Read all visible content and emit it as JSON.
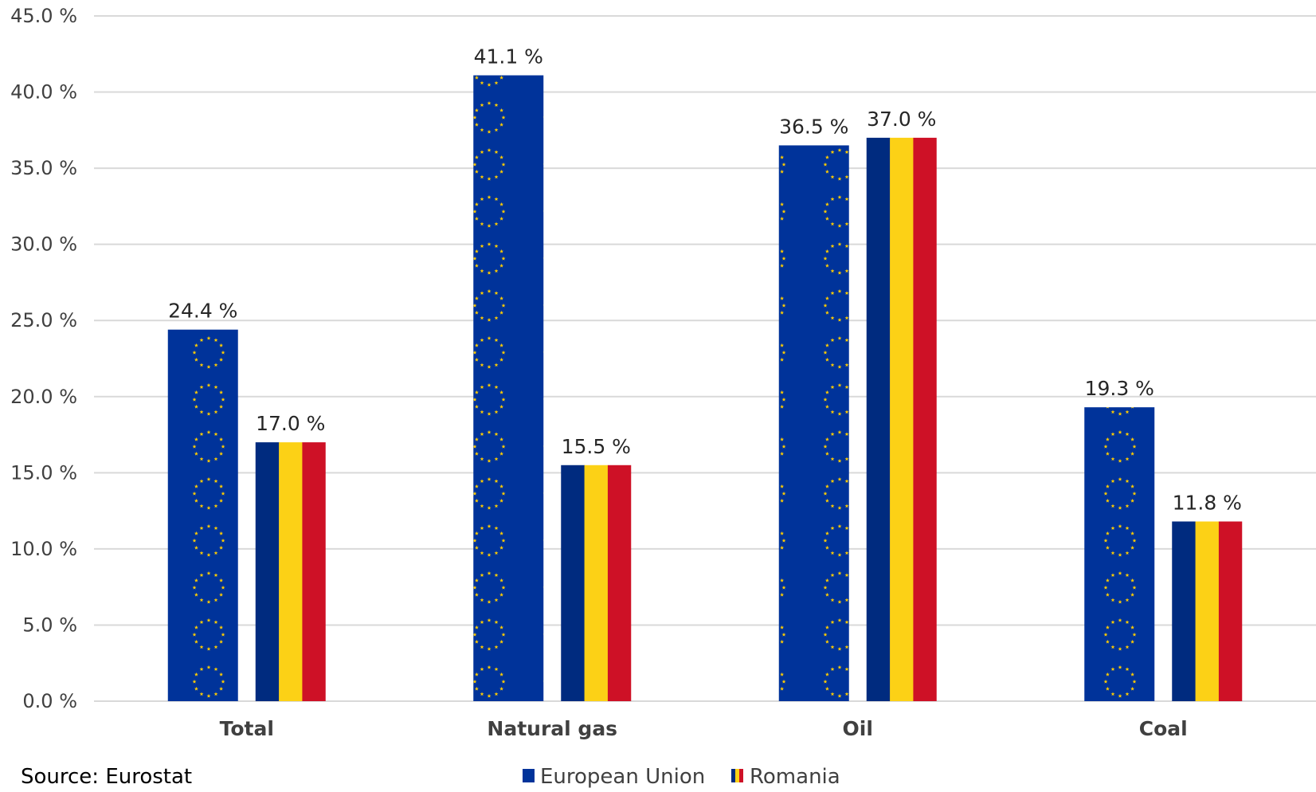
{
  "chart_data": {
    "type": "bar",
    "categories": [
      "Total",
      "Natural gas",
      "Oil",
      "Coal"
    ],
    "series": [
      {
        "name": "European Union",
        "values": [
          24.4,
          41.1,
          36.5,
          19.3
        ],
        "labels": [
          "24.4 %",
          "41.1 %",
          "36.5 %",
          "19.3 %"
        ]
      },
      {
        "name": "Romania",
        "values": [
          17.0,
          15.5,
          37.0,
          11.8
        ],
        "labels": [
          "17.0 %",
          "15.5 %",
          "37.0 %",
          "11.8 %"
        ]
      }
    ],
    "yticks": [
      "0.0 %",
      "5.0 %",
      "10.0 %",
      "15.0 %",
      "20.0 %",
      "25.0 %",
      "30.0 %",
      "35.0 %",
      "40.0 %",
      "45.0 %"
    ],
    "ylim": [
      0,
      45
    ],
    "grid": true,
    "legend_position": "bottom-center",
    "colors": {
      "eu_blue": "#00339a",
      "eu_star": "#ffcc00",
      "ro_blue": "#002b7f",
      "ro_yellow": "#fcd116",
      "ro_red": "#ce1126",
      "grid": "#d9d9d9"
    }
  },
  "source": "Source: Eurostat"
}
